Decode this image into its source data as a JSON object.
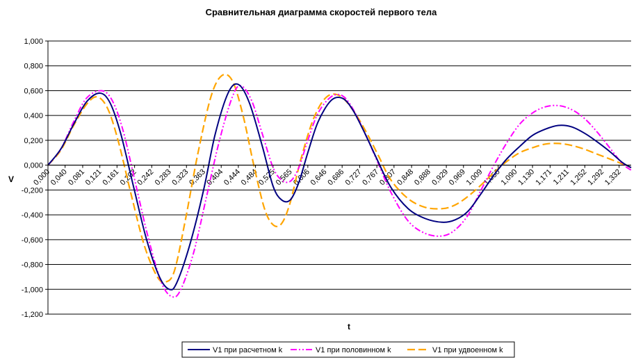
{
  "chart_data": {
    "type": "line",
    "title": "Сравнительная диаграмма скоростей первого тела",
    "xlabel": "t",
    "ylabel": "V",
    "xlim": [
      0,
      1.36
    ],
    "ylim": [
      -1.2,
      1.0
    ],
    "y_ticks": [
      "1,000",
      "0,800",
      "0,600",
      "0,400",
      "0,200",
      "0,000",
      "-0,200",
      "-0,400",
      "-0,600",
      "-0,800",
      "-1,000",
      "-1,200"
    ],
    "y_tick_values": [
      1.0,
      0.8,
      0.6,
      0.4,
      0.2,
      0.0,
      -0.2,
      -0.4,
      -0.6,
      -0.8,
      -1.0,
      -1.2
    ],
    "x_ticks": [
      "0,000",
      "0,040",
      "0,081",
      "0,121",
      "0,161",
      "0,202",
      "0,242",
      "0,283",
      "0,323",
      "0,363",
      "0,404",
      "0,444",
      "0,484",
      "0,525",
      "0,565",
      "0,606",
      "0,646",
      "0,686",
      "0,727",
      "0,767",
      "0,807",
      "0,848",
      "0,888",
      "0,929",
      "0,969",
      "1,009",
      "1,050",
      "1,090",
      "1,130",
      "1,171",
      "1,211",
      "1,252",
      "1,292",
      "1,332"
    ],
    "x_tick_values": [
      0.0,
      0.04,
      0.081,
      0.121,
      0.161,
      0.202,
      0.242,
      0.283,
      0.323,
      0.363,
      0.404,
      0.444,
      0.484,
      0.525,
      0.565,
      0.606,
      0.646,
      0.686,
      0.727,
      0.767,
      0.807,
      0.848,
      0.888,
      0.929,
      0.969,
      1.009,
      1.05,
      1.09,
      1.13,
      1.171,
      1.211,
      1.252,
      1.292,
      1.332
    ],
    "grid": "horizontal",
    "legend_position": "bottom",
    "series": [
      {
        "name": "V1 при расчетном k",
        "color": "#000080",
        "style": "dotted-solid",
        "x": [
          0.0,
          0.03,
          0.06,
          0.09,
          0.121,
          0.145,
          0.17,
          0.2,
          0.23,
          0.26,
          0.283,
          0.3,
          0.33,
          0.363,
          0.39,
          0.42,
          0.444,
          0.47,
          0.5,
          0.525,
          0.545,
          0.565,
          0.585,
          0.606,
          0.63,
          0.66,
          0.686,
          0.71,
          0.74,
          0.767,
          0.8,
          0.84,
          0.88,
          0.92,
          0.95,
          0.98,
          1.01,
          1.04,
          1.07,
          1.1,
          1.13,
          1.16,
          1.19,
          1.22,
          1.25,
          1.28,
          1.31,
          1.34,
          1.36
        ],
        "values": [
          0.0,
          0.13,
          0.33,
          0.51,
          0.58,
          0.5,
          0.25,
          -0.18,
          -0.6,
          -0.9,
          -1.0,
          -0.95,
          -0.65,
          -0.2,
          0.25,
          0.58,
          0.65,
          0.5,
          0.15,
          -0.17,
          -0.28,
          -0.28,
          -0.14,
          0.1,
          0.35,
          0.52,
          0.54,
          0.45,
          0.25,
          0.05,
          -0.18,
          -0.35,
          -0.43,
          -0.46,
          -0.44,
          -0.37,
          -0.23,
          -0.08,
          0.05,
          0.15,
          0.24,
          0.29,
          0.32,
          0.31,
          0.26,
          0.19,
          0.11,
          0.02,
          -0.02
        ]
      },
      {
        "name": "V1 при половинном k",
        "color": "#ff00ff",
        "style": "dash-dot-dot",
        "x": [
          0.0,
          0.03,
          0.06,
          0.09,
          0.125,
          0.15,
          0.175,
          0.205,
          0.235,
          0.265,
          0.29,
          0.31,
          0.34,
          0.37,
          0.4,
          0.43,
          0.45,
          0.475,
          0.5,
          0.525,
          0.545,
          0.565,
          0.585,
          0.606,
          0.63,
          0.66,
          0.686,
          0.71,
          0.74,
          0.767,
          0.8,
          0.84,
          0.88,
          0.92,
          0.95,
          0.98,
          1.01,
          1.04,
          1.07,
          1.1,
          1.13,
          1.16,
          1.19,
          1.22,
          1.25,
          1.28,
          1.31,
          1.34,
          1.36
        ],
        "values": [
          0.0,
          0.13,
          0.35,
          0.54,
          0.6,
          0.52,
          0.28,
          -0.16,
          -0.6,
          -0.95,
          -1.06,
          -1.0,
          -0.7,
          -0.25,
          0.2,
          0.55,
          0.64,
          0.52,
          0.25,
          -0.02,
          -0.12,
          -0.13,
          -0.02,
          0.2,
          0.42,
          0.55,
          0.56,
          0.46,
          0.25,
          0.04,
          -0.22,
          -0.45,
          -0.55,
          -0.57,
          -0.52,
          -0.4,
          -0.2,
          -0.0,
          0.18,
          0.33,
          0.42,
          0.47,
          0.48,
          0.45,
          0.38,
          0.27,
          0.14,
          0.01,
          -0.04
        ]
      },
      {
        "name": "V1 при удвоенном k",
        "color": "#ffa500",
        "style": "long-dash",
        "x": [
          0.0,
          0.03,
          0.06,
          0.09,
          0.115,
          0.14,
          0.165,
          0.195,
          0.225,
          0.255,
          0.275,
          0.295,
          0.32,
          0.35,
          0.38,
          0.405,
          0.43,
          0.455,
          0.48,
          0.505,
          0.525,
          0.545,
          0.565,
          0.59,
          0.62,
          0.65,
          0.68,
          0.71,
          0.74,
          0.77,
          0.8,
          0.84,
          0.88,
          0.92,
          0.95,
          0.98,
          1.01,
          1.04,
          1.07,
          1.1,
          1.13,
          1.16,
          1.19,
          1.22,
          1.25,
          1.28,
          1.31,
          1.34,
          1.36
        ],
        "values": [
          0.0,
          0.12,
          0.32,
          0.49,
          0.55,
          0.45,
          0.18,
          -0.25,
          -0.65,
          -0.9,
          -0.94,
          -0.85,
          -0.45,
          0.1,
          0.55,
          0.72,
          0.68,
          0.4,
          0.0,
          -0.35,
          -0.48,
          -0.47,
          -0.3,
          0.05,
          0.38,
          0.55,
          0.56,
          0.45,
          0.28,
          0.08,
          -0.12,
          -0.27,
          -0.34,
          -0.35,
          -0.32,
          -0.25,
          -0.16,
          -0.06,
          0.03,
          0.1,
          0.14,
          0.17,
          0.175,
          0.16,
          0.13,
          0.09,
          0.05,
          0.01,
          -0.02
        ]
      }
    ]
  }
}
